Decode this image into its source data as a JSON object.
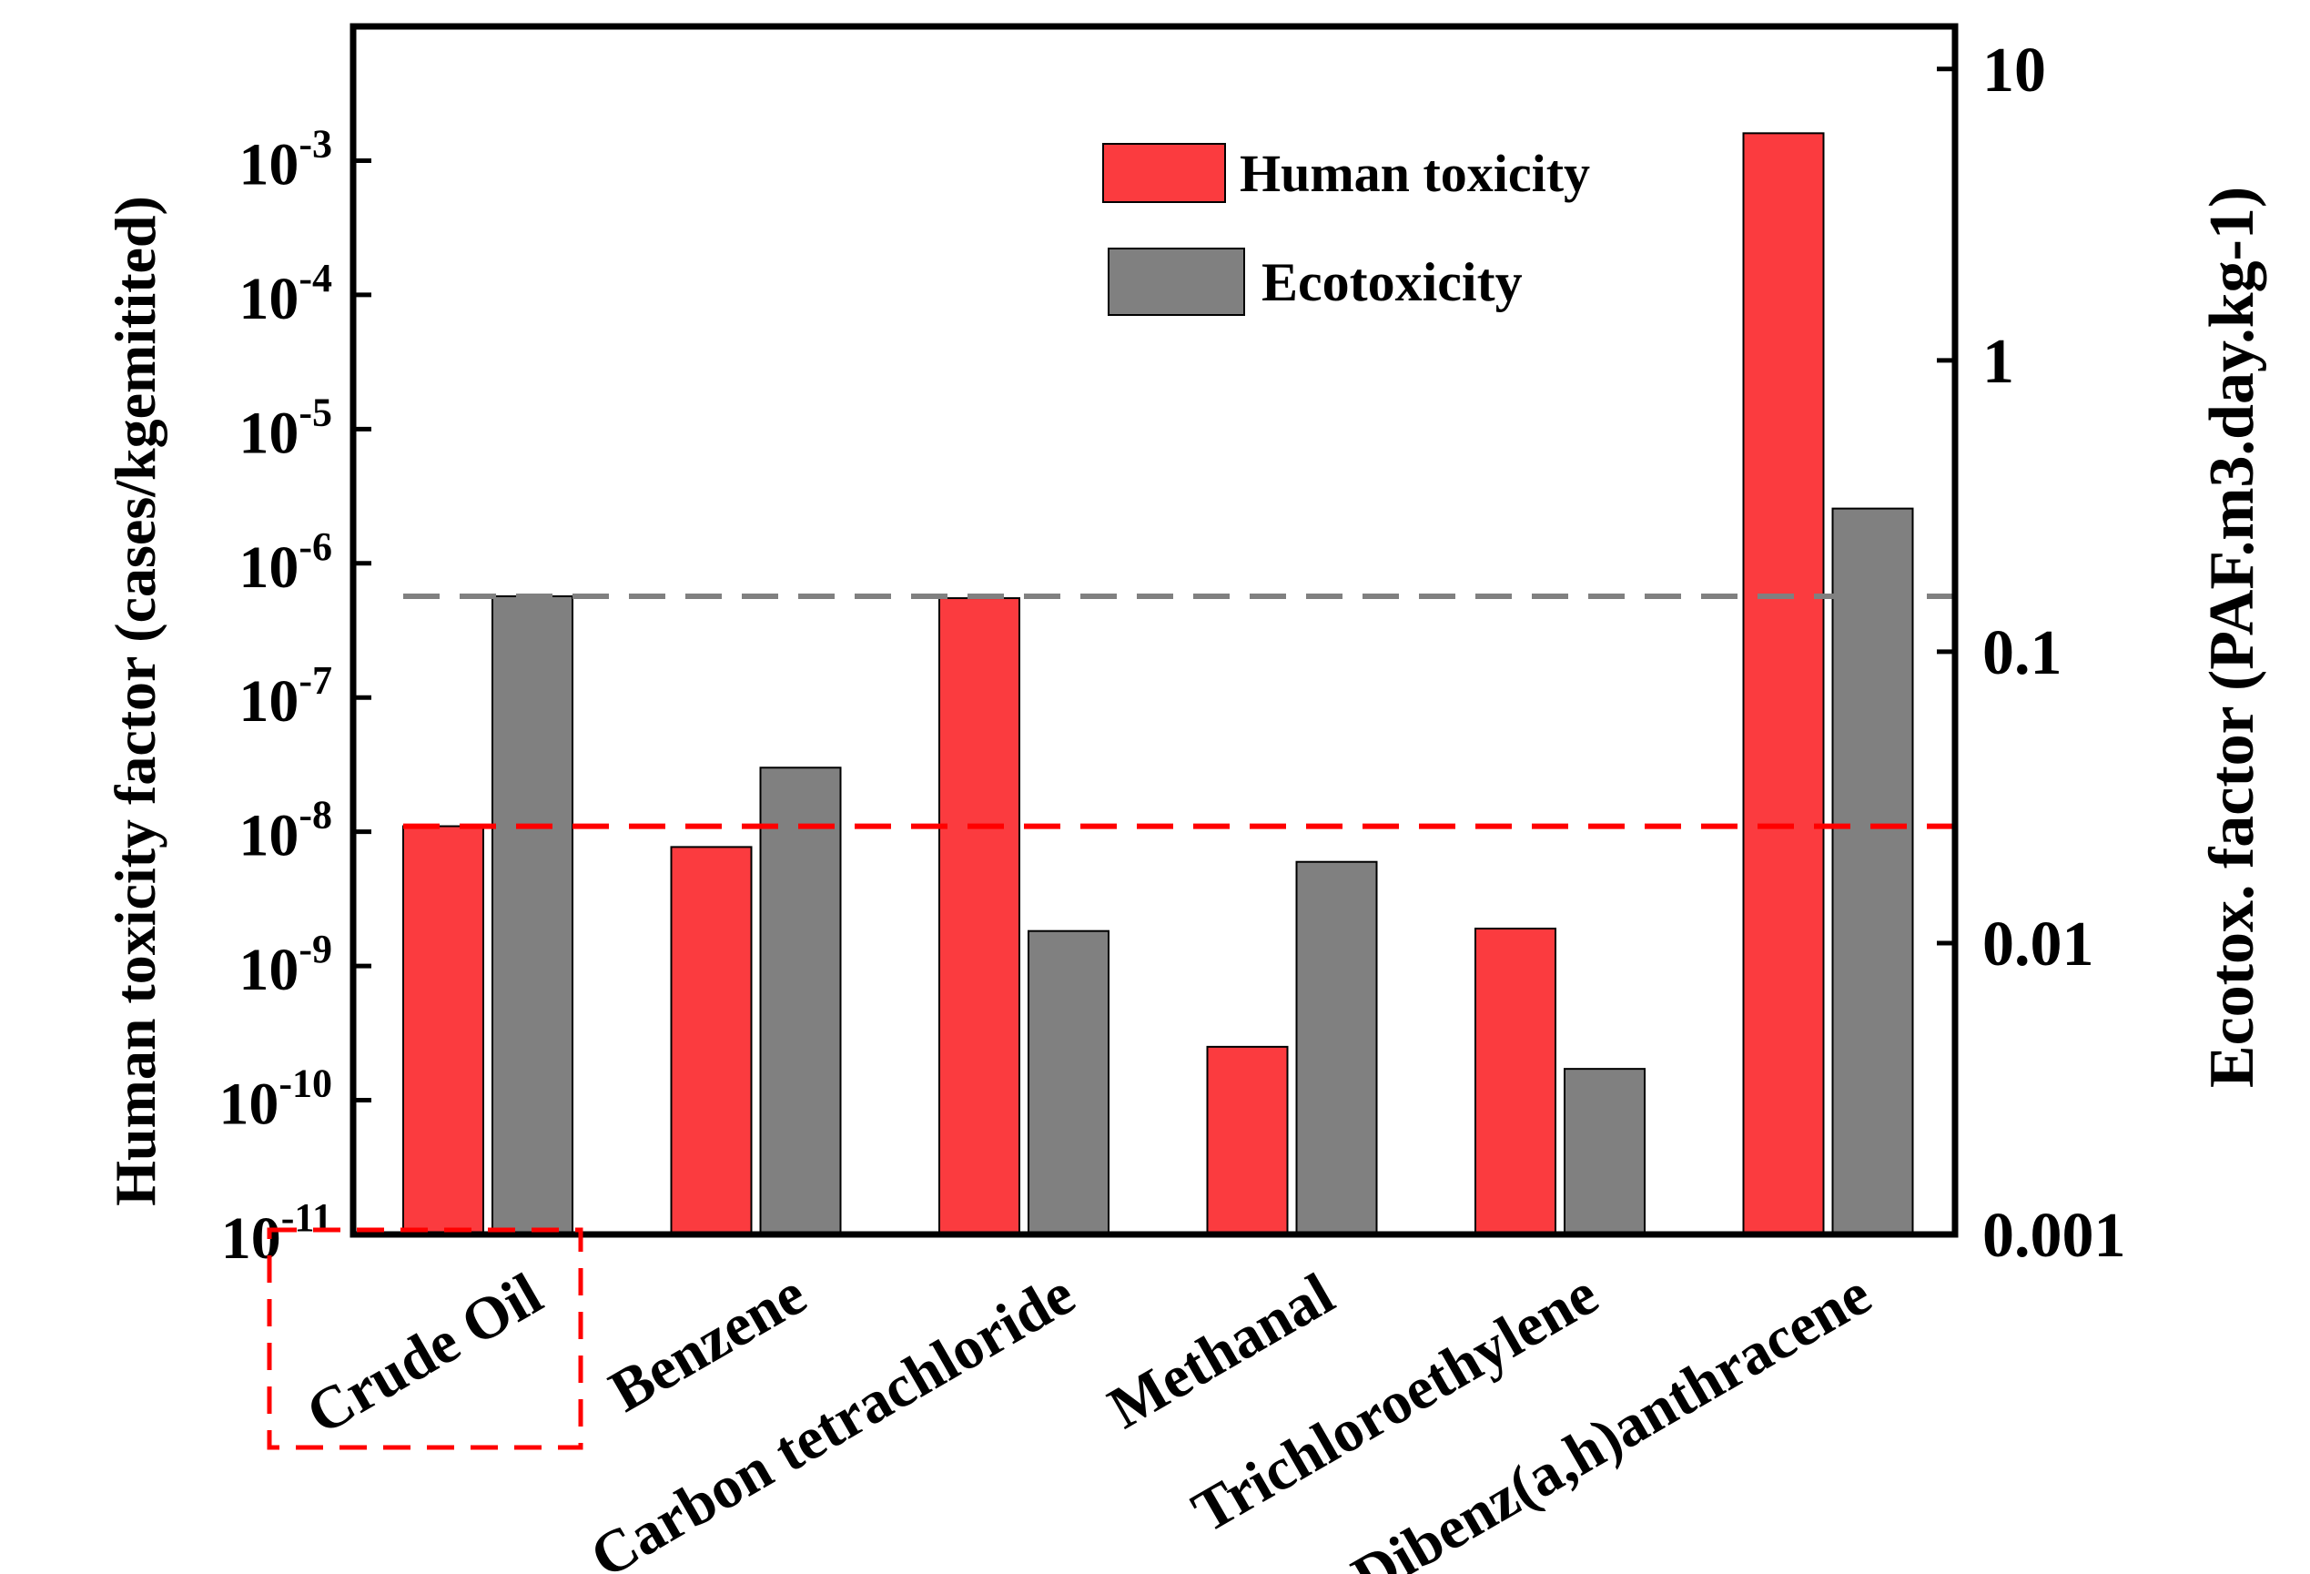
{
  "chart_data": {
    "type": "bar",
    "categories": [
      "Crude Oil",
      "Benzene",
      "Carbon tetrachloride",
      "Methanal",
      "Trichloroethylene",
      "Dibenz(a,h)anthracene"
    ],
    "series": [
      {
        "name": "Human toxicity",
        "axis": "left",
        "color": "#fb3b3f",
        "values": [
          1.1e-08,
          7.7e-09,
          5.5e-07,
          2.5e-10,
          1.9e-09,
          0.0016
        ]
      },
      {
        "name": "Ecotoxicity",
        "axis": "right",
        "color": "#808080",
        "values": [
          0.155,
          0.04,
          0.011,
          0.019,
          0.0037,
          0.31
        ]
      }
    ],
    "ylabel": "Human toxicity factor (cases/kgemitited)",
    "y2label": "Ecotox. factor (PAF.m3.day.kg-1)",
    "xlabel": "",
    "yscale": "log",
    "ylim": [
      1e-11,
      0.01
    ],
    "y_ticks": [
      {
        "base": "10",
        "exp": "-11"
      },
      {
        "base": "10",
        "exp": "-10"
      },
      {
        "base": "10",
        "exp": "-9"
      },
      {
        "base": "10",
        "exp": "-8"
      },
      {
        "base": "10",
        "exp": "-7"
      },
      {
        "base": "10",
        "exp": "-6"
      },
      {
        "base": "10",
        "exp": "-5"
      },
      {
        "base": "10",
        "exp": "-4"
      },
      {
        "base": "10",
        "exp": "-3"
      }
    ],
    "y2scale": "log",
    "y2lim": [
      0.001,
      14
    ],
    "y2_ticks": [
      {
        "value": 0.001,
        "label": "0.001"
      },
      {
        "value": 0.01,
        "label": "0.01"
      },
      {
        "value": 0.1,
        "label": "0.1"
      },
      {
        "value": 1,
        "label": "1"
      },
      {
        "value": 10,
        "label": "10"
      }
    ],
    "reference_lines": [
      {
        "axis": "right",
        "value": 0.155,
        "color": "#808080",
        "style": "dashed"
      },
      {
        "axis": "left",
        "value": 1.1e-08,
        "color": "#ff0000",
        "style": "dashed"
      }
    ],
    "highlight_category": "Crude Oil",
    "highlight_color": "#ff0000",
    "legend_position": "top-center",
    "grid": false
  }
}
